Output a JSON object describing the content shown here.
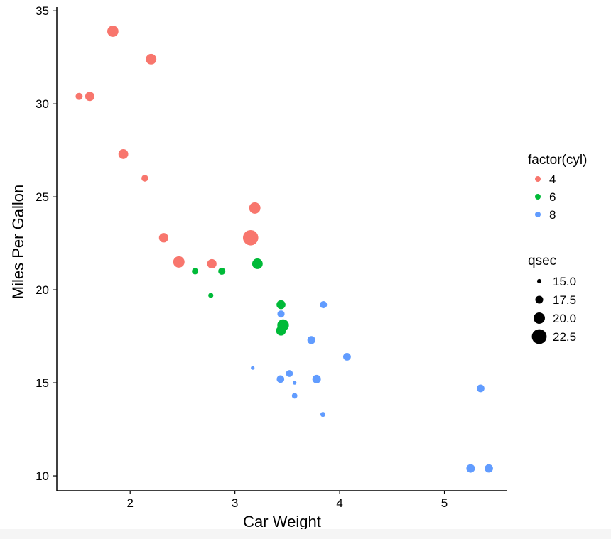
{
  "chart_data": {
    "type": "scatter",
    "title": "",
    "xlabel": "Car Weight",
    "ylabel": "Miles Per Gallon",
    "xlim": [
      1.3,
      5.6
    ],
    "ylim": [
      9.2,
      35.2
    ],
    "xticks": [
      2,
      3,
      4,
      5
    ],
    "yticks": [
      10,
      15,
      20,
      25,
      30,
      35
    ],
    "grid": false,
    "legend": {
      "placement": "right",
      "color": {
        "title": "factor(cyl)",
        "entries": [
          {
            "label": "4",
            "color": "#F8766D"
          },
          {
            "label": "6",
            "color": "#00BA38"
          },
          {
            "label": "8",
            "color": "#619CFF"
          }
        ]
      },
      "size": {
        "title": "qsec",
        "entries": [
          {
            "label": "15.0",
            "value": 15.0
          },
          {
            "label": "17.5",
            "value": 17.5
          },
          {
            "label": "20.0",
            "value": 20.0
          },
          {
            "label": "22.5",
            "value": 22.5
          }
        ]
      }
    },
    "size_range": [
      14.5,
      22.9
    ],
    "points": [
      {
        "x": 2.62,
        "y": 21.0,
        "cyl": "6",
        "qsec": 16.46
      },
      {
        "x": 2.875,
        "y": 21.0,
        "cyl": "6",
        "qsec": 17.02
      },
      {
        "x": 2.32,
        "y": 22.8,
        "cyl": "4",
        "qsec": 18.61
      },
      {
        "x": 3.215,
        "y": 21.4,
        "cyl": "6",
        "qsec": 19.44
      },
      {
        "x": 3.44,
        "y": 18.7,
        "cyl": "8",
        "qsec": 17.02
      },
      {
        "x": 3.46,
        "y": 18.1,
        "cyl": "6",
        "qsec": 20.22
      },
      {
        "x": 3.57,
        "y": 14.3,
        "cyl": "8",
        "qsec": 15.84
      },
      {
        "x": 3.19,
        "y": 24.4,
        "cyl": "4",
        "qsec": 20.0
      },
      {
        "x": 3.15,
        "y": 22.8,
        "cyl": "4",
        "qsec": 22.9
      },
      {
        "x": 3.44,
        "y": 19.2,
        "cyl": "6",
        "qsec": 18.3
      },
      {
        "x": 3.44,
        "y": 17.8,
        "cyl": "6",
        "qsec": 18.9
      },
      {
        "x": 4.07,
        "y": 16.4,
        "cyl": "8",
        "qsec": 17.4
      },
      {
        "x": 3.73,
        "y": 17.3,
        "cyl": "8",
        "qsec": 17.6
      },
      {
        "x": 3.78,
        "y": 15.2,
        "cyl": "8",
        "qsec": 18.0
      },
      {
        "x": 5.25,
        "y": 10.4,
        "cyl": "8",
        "qsec": 17.98
      },
      {
        "x": 5.424,
        "y": 10.4,
        "cyl": "8",
        "qsec": 17.82
      },
      {
        "x": 5.345,
        "y": 14.7,
        "cyl": "8",
        "qsec": 17.42
      },
      {
        "x": 2.2,
        "y": 32.4,
        "cyl": "4",
        "qsec": 19.47
      },
      {
        "x": 1.615,
        "y": 30.4,
        "cyl": "4",
        "qsec": 18.52
      },
      {
        "x": 1.835,
        "y": 33.9,
        "cyl": "4",
        "qsec": 19.9
      },
      {
        "x": 2.465,
        "y": 21.5,
        "cyl": "4",
        "qsec": 20.01
      },
      {
        "x": 3.52,
        "y": 15.5,
        "cyl": "8",
        "qsec": 16.87
      },
      {
        "x": 3.435,
        "y": 15.2,
        "cyl": "8",
        "qsec": 17.3
      },
      {
        "x": 3.84,
        "y": 13.3,
        "cyl": "8",
        "qsec": 15.41
      },
      {
        "x": 3.845,
        "y": 19.2,
        "cyl": "8",
        "qsec": 17.05
      },
      {
        "x": 1.935,
        "y": 27.3,
        "cyl": "4",
        "qsec": 18.9
      },
      {
        "x": 2.14,
        "y": 26.0,
        "cyl": "4",
        "qsec": 16.7
      },
      {
        "x": 1.513,
        "y": 30.4,
        "cyl": "4",
        "qsec": 16.9
      },
      {
        "x": 3.17,
        "y": 15.8,
        "cyl": "8",
        "qsec": 14.5
      },
      {
        "x": 2.77,
        "y": 19.7,
        "cyl": "6",
        "qsec": 15.5
      },
      {
        "x": 3.57,
        "y": 15.0,
        "cyl": "8",
        "qsec": 14.6
      },
      {
        "x": 2.78,
        "y": 21.4,
        "cyl": "4",
        "qsec": 18.6
      }
    ]
  }
}
